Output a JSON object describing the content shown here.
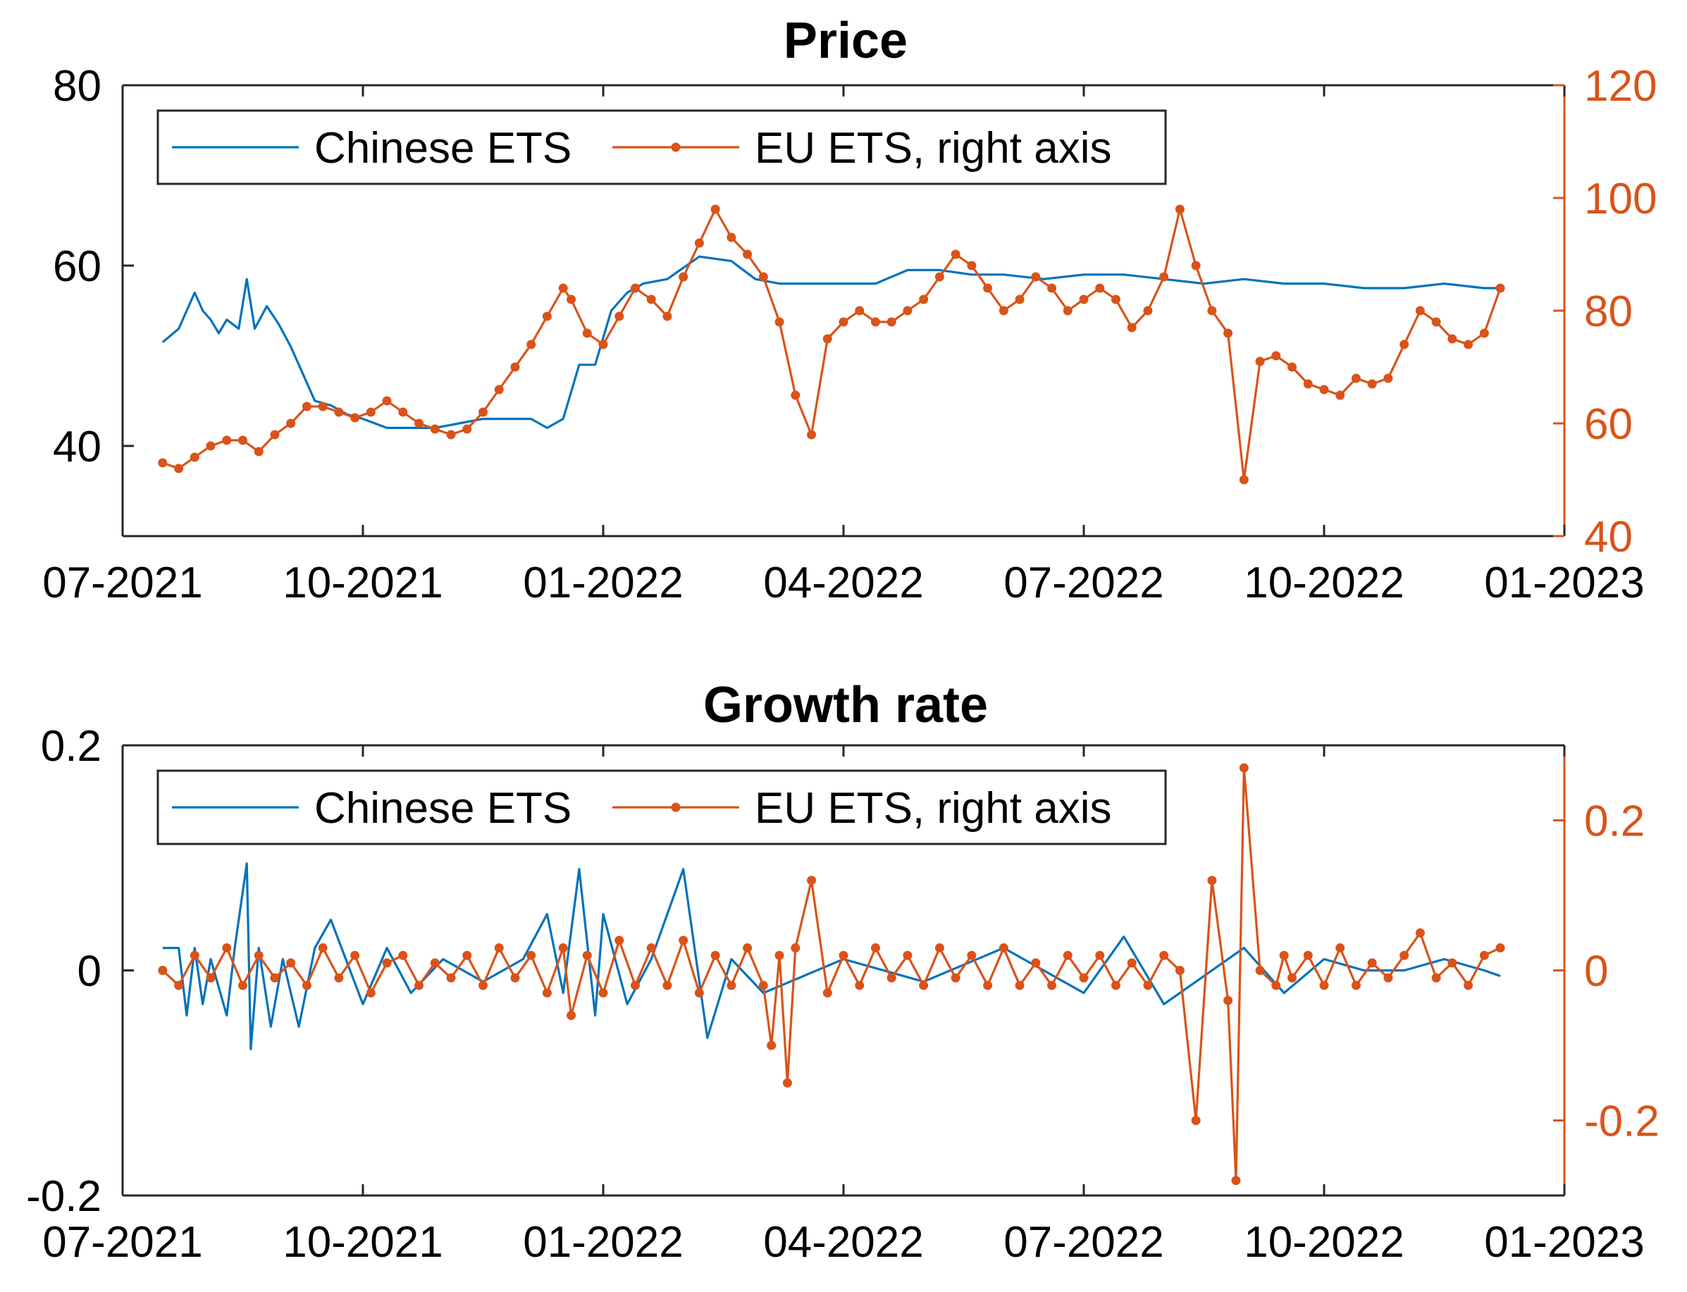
{
  "chart_data": [
    {
      "type": "line",
      "title": "Price",
      "xlabel": "",
      "ylabel": "",
      "x_ticks": [
        "07-2021",
        "10-2021",
        "01-2022",
        "04-2022",
        "07-2022",
        "10-2022",
        "01-2023"
      ],
      "x_tick_months": [
        0,
        3,
        6,
        9,
        12,
        15,
        18
      ],
      "y_left": {
        "lim": [
          30,
          80
        ],
        "ticks": [
          "40",
          "60",
          "80"
        ],
        "tick_values": [
          40,
          60,
          80
        ]
      },
      "y_right": {
        "lim": [
          40,
          120
        ],
        "ticks": [
          "40",
          "60",
          "80",
          "100",
          "120"
        ],
        "tick_values": [
          40,
          60,
          80,
          100,
          120
        ]
      },
      "legend": {
        "position": "top-left",
        "entries": [
          "Chinese ETS",
          "EU ETS, right axis"
        ]
      },
      "series": [
        {
          "name": "Chinese ETS",
          "axis": "left",
          "color": "#0072BD",
          "x_months": [
            0.5,
            0.7,
            0.9,
            1.0,
            1.1,
            1.2,
            1.3,
            1.45,
            1.55,
            1.65,
            1.8,
            1.95,
            2.1,
            2.2,
            2.4,
            2.6,
            2.8,
            3.0,
            3.3,
            3.6,
            3.9,
            4.2,
            4.5,
            4.8,
            5.1,
            5.3,
            5.5,
            5.7,
            5.9,
            6.1,
            6.3,
            6.5,
            6.8,
            7.2,
            7.6,
            7.9,
            8.2,
            8.5,
            8.9,
            9.4,
            9.8,
            10.2,
            10.6,
            11.0,
            11.5,
            12.0,
            12.5,
            13.0,
            13.5,
            14.0,
            14.5,
            15.0,
            15.5,
            16.0,
            16.5,
            17.0,
            17.2
          ],
          "y": [
            51.5,
            53,
            57,
            55,
            54,
            52.5,
            54,
            53,
            58.5,
            53,
            55.5,
            53.5,
            51,
            49,
            45,
            44.5,
            43.5,
            43,
            42,
            42,
            42,
            42.5,
            43,
            43,
            43,
            42,
            43,
            49,
            49,
            55,
            57,
            58,
            58.5,
            61,
            60.5,
            58.5,
            58,
            58,
            58,
            58,
            59.5,
            59.5,
            59,
            59,
            58.5,
            59,
            59,
            58.5,
            58,
            58.5,
            58,
            58,
            57.5,
            57.5,
            58,
            57.5,
            57.5
          ]
        },
        {
          "name": "EU ETS, right axis",
          "axis": "right",
          "color": "#D95319",
          "x_months": [
            0.5,
            0.7,
            0.9,
            1.1,
            1.3,
            1.5,
            1.7,
            1.9,
            2.1,
            2.3,
            2.5,
            2.7,
            2.9,
            3.1,
            3.3,
            3.5,
            3.7,
            3.9,
            4.1,
            4.3,
            4.5,
            4.7,
            4.9,
            5.1,
            5.3,
            5.5,
            5.6,
            5.8,
            6.0,
            6.2,
            6.4,
            6.6,
            6.8,
            7.0,
            7.2,
            7.4,
            7.6,
            7.8,
            8.0,
            8.2,
            8.4,
            8.6,
            8.8,
            9.0,
            9.2,
            9.4,
            9.6,
            9.8,
            10.0,
            10.2,
            10.4,
            10.6,
            10.8,
            11.0,
            11.2,
            11.4,
            11.6,
            11.8,
            12.0,
            12.2,
            12.4,
            12.6,
            12.8,
            13.0,
            13.2,
            13.4,
            13.6,
            13.8,
            14.0,
            14.2,
            14.4,
            14.6,
            14.8,
            15.0,
            15.2,
            15.4,
            15.6,
            15.8,
            16.0,
            16.2,
            16.4,
            16.6,
            16.8,
            17.0,
            17.2
          ],
          "y": [
            53,
            52,
            54,
            56,
            57,
            57,
            55,
            58,
            60,
            63,
            63,
            62,
            61,
            62,
            64,
            62,
            60,
            59,
            58,
            59,
            62,
            66,
            70,
            74,
            79,
            84,
            82,
            76,
            74,
            79,
            84,
            82,
            79,
            86,
            92,
            98,
            93,
            90,
            86,
            78,
            65,
            58,
            75,
            78,
            80,
            78,
            78,
            80,
            82,
            86,
            90,
            88,
            84,
            80,
            82,
            86,
            84,
            80,
            82,
            84,
            82,
            77,
            80,
            86,
            98,
            88,
            80,
            76,
            50,
            71,
            72,
            70,
            67,
            66,
            65,
            68,
            67,
            68,
            74,
            80,
            78,
            75,
            74,
            76,
            84
          ]
        }
      ]
    },
    {
      "type": "line",
      "title": "Growth rate",
      "xlabel": "",
      "ylabel": "",
      "x_ticks": [
        "07-2021",
        "10-2021",
        "01-2022",
        "04-2022",
        "07-2022",
        "10-2022",
        "01-2023"
      ],
      "x_tick_months": [
        0,
        3,
        6,
        9,
        12,
        15,
        18
      ],
      "y_left": {
        "lim": [
          -0.2,
          0.2
        ],
        "ticks": [
          "-0.2",
          "0",
          "0.2"
        ],
        "tick_values": [
          -0.2,
          0,
          0.2
        ]
      },
      "y_right": {
        "lim": [
          -0.3,
          0.3
        ],
        "ticks": [
          "-0.2",
          "0",
          "0.2"
        ],
        "tick_values": [
          -0.2,
          0,
          0.2
        ]
      },
      "legend": {
        "position": "top-left",
        "entries": [
          "Chinese ETS",
          "EU ETS, right axis"
        ]
      },
      "series": [
        {
          "name": "Chinese ETS",
          "axis": "left",
          "color": "#0072BD",
          "x_months": [
            0.5,
            0.7,
            0.8,
            0.9,
            1.0,
            1.1,
            1.3,
            1.4,
            1.55,
            1.6,
            1.7,
            1.85,
            2.0,
            2.2,
            2.4,
            2.6,
            3.0,
            3.3,
            3.6,
            4.0,
            4.5,
            5.0,
            5.3,
            5.5,
            5.7,
            5.9,
            6.0,
            6.3,
            6.6,
            7.0,
            7.3,
            7.6,
            8.0,
            9.0,
            10.0,
            11.0,
            12.0,
            12.5,
            13.0,
            14.0,
            14.5,
            15.0,
            15.5,
            16.0,
            16.5,
            17.0,
            17.2
          ],
          "y": [
            0.02,
            0.02,
            -0.04,
            0.02,
            -0.03,
            0.01,
            -0.04,
            0.02,
            0.095,
            -0.07,
            0.02,
            -0.05,
            0.01,
            -0.05,
            0.02,
            0.045,
            -0.03,
            0.02,
            -0.02,
            0.01,
            -0.01,
            0.01,
            0.05,
            -0.02,
            0.09,
            -0.04,
            0.05,
            -0.03,
            0.01,
            0.09,
            -0.06,
            0.01,
            -0.02,
            0.01,
            -0.01,
            0.02,
            -0.02,
            0.03,
            -0.03,
            0.02,
            -0.02,
            0.01,
            0.0,
            0.0,
            0.01,
            0.0,
            -0.005
          ]
        },
        {
          "name": "EU ETS, right axis",
          "axis": "right",
          "color": "#D95319",
          "x_months": [
            0.5,
            0.7,
            0.9,
            1.1,
            1.3,
            1.5,
            1.7,
            1.9,
            2.1,
            2.3,
            2.5,
            2.7,
            2.9,
            3.1,
            3.3,
            3.5,
            3.7,
            3.9,
            4.1,
            4.3,
            4.5,
            4.7,
            4.9,
            5.1,
            5.3,
            5.5,
            5.6,
            5.8,
            6.0,
            6.2,
            6.4,
            6.6,
            6.8,
            7.0,
            7.2,
            7.4,
            7.6,
            7.8,
            8.0,
            8.1,
            8.2,
            8.3,
            8.4,
            8.6,
            8.8,
            9.0,
            9.2,
            9.4,
            9.6,
            9.8,
            10.0,
            10.2,
            10.4,
            10.6,
            10.8,
            11.0,
            11.2,
            11.4,
            11.6,
            11.8,
            12.0,
            12.2,
            12.4,
            12.6,
            12.8,
            13.0,
            13.2,
            13.4,
            13.6,
            13.8,
            13.9,
            14.0,
            14.2,
            14.4,
            14.5,
            14.6,
            14.8,
            15.0,
            15.2,
            15.4,
            15.6,
            15.8,
            16.0,
            16.2,
            16.4,
            16.6,
            16.8,
            17.0,
            17.2
          ],
          "y": [
            0.0,
            -0.02,
            0.02,
            -0.01,
            0.03,
            -0.02,
            0.02,
            -0.01,
            0.01,
            -0.02,
            0.03,
            -0.01,
            0.02,
            -0.03,
            0.01,
            0.02,
            -0.02,
            0.01,
            -0.01,
            0.02,
            -0.02,
            0.03,
            -0.01,
            0.02,
            -0.03,
            0.03,
            -0.06,
            0.02,
            -0.03,
            0.04,
            -0.02,
            0.03,
            -0.02,
            0.04,
            -0.03,
            0.02,
            -0.02,
            0.03,
            -0.02,
            -0.1,
            0.02,
            -0.15,
            0.03,
            0.12,
            -0.03,
            0.02,
            -0.02,
            0.03,
            -0.01,
            0.02,
            -0.02,
            0.03,
            -0.01,
            0.02,
            -0.02,
            0.03,
            -0.02,
            0.01,
            -0.02,
            0.02,
            -0.01,
            0.02,
            -0.02,
            0.01,
            -0.02,
            0.02,
            0.0,
            -0.2,
            0.12,
            -0.04,
            -0.28,
            0.27,
            0.0,
            -0.02,
            0.02,
            -0.01,
            0.02,
            -0.02,
            0.03,
            -0.02,
            0.01,
            -0.01,
            0.02,
            0.05,
            -0.01,
            0.01,
            -0.02,
            0.02,
            0.03
          ]
        }
      ]
    }
  ]
}
